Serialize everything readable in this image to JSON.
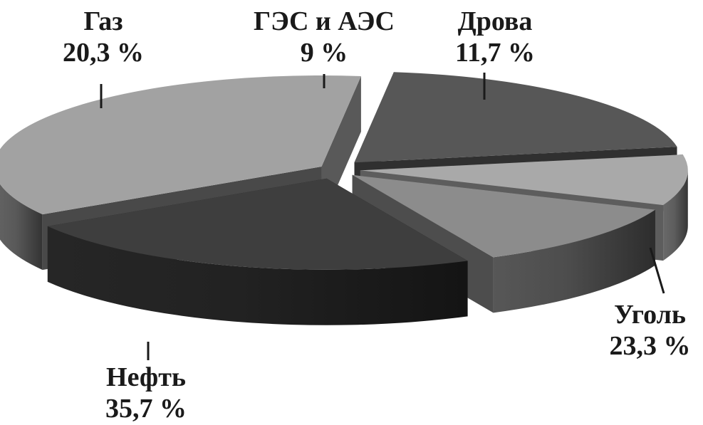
{
  "chart_data": {
    "type": "pie",
    "style": "3d-exploded",
    "colors": {
      "background": "#ffffff",
      "text": "#1a1a1a"
    },
    "slices": [
      {
        "label": "ГЭС и АЭС",
        "value": 9,
        "value_label": "9 %",
        "color": "#a9a9a9"
      },
      {
        "label": "Дрова",
        "value": 11.7,
        "value_label": "11,7 %",
        "color": "#8c8c8c"
      },
      {
        "label": "Уголь",
        "value": 23.3,
        "value_label": "23,3 %",
        "color": "#3e3e3e"
      },
      {
        "label": "Нефть",
        "value": 35.7,
        "value_label": "35,7 %",
        "color": "#a2a2a2"
      },
      {
        "label": "Газ",
        "value": 20.3,
        "value_label": "20,3 %",
        "color": "#575757"
      }
    ]
  }
}
